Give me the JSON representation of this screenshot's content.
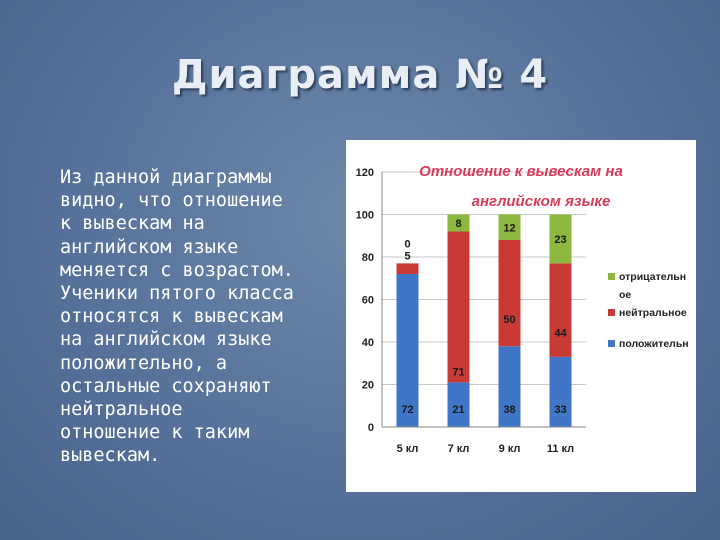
{
  "slide": {
    "title": "Диаграмма № 4",
    "text": "Из данной диаграммы\nвидно, что отношение\nк вывескам на\nанглийском языке\nменяется с возрастом.\nУченики пятого класса\nотносятся к вывескам\nна английском языке\nположительно, а\nостальные сохраняют\nнейтральное\nотношение к таким\nвывескам."
  },
  "chart_data": {
    "type": "bar",
    "stacked": true,
    "title_line1": "Отношение к вывескам на",
    "title_line2": "английском языке",
    "categories": [
      "5 кл",
      "7 кл",
      "9 кл",
      "11 кл"
    ],
    "ylim": [
      0,
      120
    ],
    "yticks": [
      "0",
      "20",
      "40",
      "60",
      "80",
      "100",
      "120"
    ],
    "grid": true,
    "legend_position": "right",
    "series": [
      {
        "name": "положительно",
        "color": "#3f76c8",
        "values": [
          72,
          21,
          38,
          33
        ],
        "labels": [
          "72",
          "21",
          "38",
          "33"
        ]
      },
      {
        "name": "нейтральное",
        "color": "#c93a37",
        "values": [
          5,
          71,
          50,
          44
        ],
        "labels": [
          "5",
          "71",
          "50",
          "44"
        ]
      },
      {
        "name": "отрицательное",
        "color": "#8db83f",
        "values": [
          0,
          8,
          12,
          23
        ],
        "labels": [
          "0",
          "8",
          "12",
          "23"
        ]
      }
    ],
    "legend": [
      {
        "line1": "отрицательн",
        "line2": "ое",
        "color": "#8db83f"
      },
      {
        "line1": "нейтральное",
        "line2": "",
        "color": "#c93a37"
      },
      {
        "line1": "положительн",
        "line2": "",
        "color": "#3f76c8"
      }
    ]
  }
}
